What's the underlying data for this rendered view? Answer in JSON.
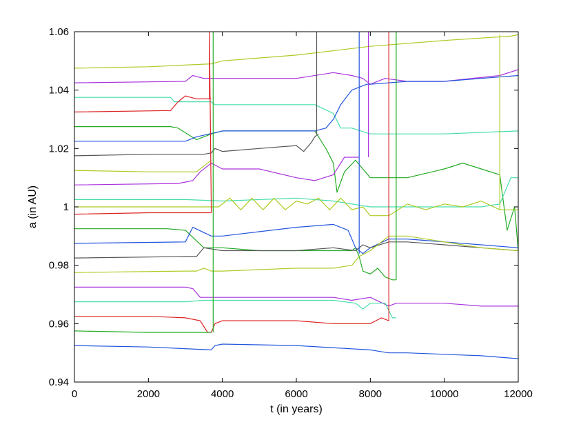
{
  "chart_data": {
    "type": "line",
    "title": "",
    "xlabel": "t (in years)",
    "ylabel": "a (in AU)",
    "xlim": [
      0,
      12000
    ],
    "ylim": [
      0.94,
      1.06
    ],
    "xticks": [
      0,
      2000,
      4000,
      6000,
      8000,
      10000,
      12000
    ],
    "xtick_labels": [
      "0",
      "2000",
      "4000",
      "6000",
      "8000",
      "10000",
      "12000"
    ],
    "yticks": [
      0.94,
      0.96,
      0.98,
      1.0,
      1.02,
      1.04,
      1.06
    ],
    "ytick_labels": [
      "0.94",
      "0.96",
      "0.98",
      "1",
      "1.02",
      "1.04",
      "1.06"
    ],
    "grid": false,
    "legend": "none",
    "series": [
      {
        "color": "#aacc22",
        "x": [
          0,
          2000,
          3700,
          4000,
          6000,
          8000,
          10000,
          11800,
          12000
        ],
        "y": [
          1.0475,
          1.048,
          1.049,
          1.05,
          1.052,
          1.055,
          1.057,
          1.0585,
          1.059
        ]
      },
      {
        "color": "#aa33dd",
        "x": [
          0,
          3000,
          3200,
          3500,
          6000,
          7000,
          7500,
          7800,
          8000,
          8400,
          9000,
          10000,
          11500,
          12000
        ],
        "y": [
          1.0425,
          1.043,
          1.045,
          1.044,
          1.044,
          1.046,
          1.045,
          1.044,
          1.042,
          1.044,
          1.043,
          1.043,
          1.045,
          1.047
        ]
      },
      {
        "color": "#44ddaa",
        "x": [
          0,
          2600,
          2700,
          3700,
          3800,
          6500,
          7000,
          7200,
          7500,
          8000,
          10000,
          12000
        ],
        "y": [
          1.0375,
          1.0375,
          1.036,
          1.036,
          1.035,
          1.035,
          1.032,
          1.027,
          1.027,
          1.025,
          1.025,
          1.026
        ]
      },
      {
        "color": "#dd2222",
        "x": [
          0,
          2600,
          2800,
          3000,
          3300,
          3700
        ],
        "y": [
          1.0325,
          1.033,
          1.036,
          1.038,
          1.037,
          1.037
        ]
      },
      {
        "color": "#22aa22",
        "x": [
          0,
          2600,
          2800,
          3300,
          3700,
          4000,
          6500,
          6800,
          7000,
          7100,
          7300,
          7600,
          8000,
          9000,
          10000,
          10500,
          11000,
          11500,
          11700,
          11900,
          12000
        ],
        "y": [
          1.0275,
          1.0275,
          1.027,
          1.023,
          1.025,
          1.026,
          1.026,
          1.02,
          1.015,
          1.005,
          1.012,
          1.016,
          1.01,
          1.01,
          1.013,
          1.015,
          1.013,
          1.011,
          0.992,
          1.0,
          0.985
        ]
      },
      {
        "color": "#2255dd",
        "x": [
          0,
          3000,
          3300,
          4000,
          6000,
          6500,
          6800,
          7000,
          7200,
          7500,
          7900,
          8000,
          9000,
          10000,
          11000,
          12000
        ],
        "y": [
          1.0225,
          1.0225,
          1.024,
          1.026,
          1.026,
          1.026,
          1.027,
          1.03,
          1.035,
          1.04,
          1.042,
          1.042,
          1.043,
          1.043,
          1.044,
          1.045
        ]
      },
      {
        "color": "#555555",
        "x": [
          0,
          2000,
          3500,
          3700,
          3800,
          4000,
          5000,
          6000,
          6200,
          6400,
          6500,
          6600
        ],
        "y": [
          1.0175,
          1.018,
          1.018,
          1.0185,
          1.02,
          1.019,
          1.02,
          1.021,
          1.019,
          1.022,
          1.024,
          1.025
        ]
      },
      {
        "color": "#aacc22",
        "x": [
          0,
          2000,
          3300,
          3500,
          3700
        ],
        "y": [
          1.0125,
          1.012,
          1.012,
          1.014,
          1.016
        ]
      },
      {
        "color": "#aa33dd",
        "x": [
          0,
          2800,
          3200,
          3400,
          3700,
          4000,
          5000,
          6000,
          6500,
          7000,
          7300,
          7700
        ],
        "y": [
          1.0075,
          1.008,
          1.009,
          1.012,
          1.015,
          1.013,
          1.013,
          1.01,
          1.009,
          1.011,
          1.017,
          1.017
        ]
      },
      {
        "color": "#44ddaa",
        "x": [
          0,
          2000,
          3000,
          4000,
          6000,
          7000,
          7500,
          8000,
          9000,
          10000,
          11000,
          11500,
          11800,
          12000
        ],
        "y": [
          1.0025,
          1.0025,
          1.0025,
          1.002,
          1.003,
          1.002,
          1.001,
          1.0,
          1.0,
          1.0,
          1.0,
          1.001,
          1.01,
          1.01
        ]
      },
      {
        "color": "#aacc22",
        "x": [
          0,
          3700,
          3900,
          4200,
          4500,
          4800,
          5100,
          5400,
          5700,
          6000,
          6300,
          6600,
          6900,
          7200,
          7500,
          7800,
          8000,
          8500,
          9000,
          9500,
          10000,
          10500,
          11000,
          11500,
          12000
        ],
        "y": [
          1.0,
          1.0,
          1.0,
          1.003,
          0.999,
          1.003,
          0.999,
          1.003,
          0.999,
          1.002,
          1.001,
          1.003,
          0.999,
          1.003,
          0.999,
          1.0,
          0.997,
          0.997,
          1.001,
          0.999,
          1.001,
          1.0,
          1.002,
          0.999,
          0.999
        ]
      },
      {
        "color": "#dd2222",
        "x": [
          0,
          2000,
          3300,
          3600,
          3700
        ],
        "y": [
          0.9975,
          0.998,
          0.998,
          0.998,
          0.998
        ]
      },
      {
        "color": "#22aa22",
        "x": [
          0,
          2500,
          3000,
          3500,
          3700,
          4000,
          5000,
          6000,
          7000,
          7500,
          7600,
          7700,
          7800,
          8000,
          8200,
          8400,
          8600,
          8700
        ],
        "y": [
          0.9925,
          0.9925,
          0.992,
          0.986,
          0.986,
          0.986,
          0.985,
          0.985,
          0.985,
          0.985,
          0.986,
          0.983,
          0.978,
          0.977,
          0.979,
          0.976,
          0.975,
          0.975
        ]
      },
      {
        "color": "#2255dd",
        "x": [
          0,
          3000,
          3200,
          3700,
          4000,
          6000,
          7000,
          7400,
          7600,
          7800,
          8000,
          8500,
          9000,
          10000,
          11000,
          12000
        ],
        "y": [
          0.9875,
          0.988,
          0.993,
          0.99,
          0.99,
          0.993,
          0.994,
          0.992,
          0.986,
          0.984,
          0.986,
          0.989,
          0.989,
          0.988,
          0.987,
          0.986
        ]
      },
      {
        "color": "#555555",
        "x": [
          0,
          3000,
          3300,
          3500,
          4000,
          6000,
          7000,
          7600,
          7800,
          8000,
          8500,
          9000,
          10000,
          11000,
          12000
        ],
        "y": [
          0.9825,
          0.983,
          0.983,
          0.986,
          0.985,
          0.985,
          0.986,
          0.985,
          0.987,
          0.986,
          0.988,
          0.988,
          0.987,
          0.986,
          0.985
        ]
      },
      {
        "color": "#aacc22",
        "x": [
          0,
          3000,
          3300,
          3500,
          3700,
          4000,
          6000,
          7000,
          7500,
          7700,
          8000,
          8500,
          9000,
          10000,
          11000,
          12000
        ],
        "y": [
          0.9775,
          0.978,
          0.978,
          0.979,
          0.978,
          0.978,
          0.979,
          0.979,
          0.98,
          0.983,
          0.985,
          0.99,
          0.99,
          0.988,
          0.986,
          0.985
        ]
      },
      {
        "color": "#aa33dd",
        "x": [
          0,
          3000,
          3200,
          3400,
          3600,
          3700,
          4000,
          5000,
          6000,
          7000,
          7500,
          8000,
          8500,
          8700,
          9000,
          10000,
          11000,
          12000
        ],
        "y": [
          0.9725,
          0.9725,
          0.972,
          0.969,
          0.969,
          0.969,
          0.969,
          0.969,
          0.969,
          0.969,
          0.968,
          0.969,
          0.966,
          0.967,
          0.967,
          0.967,
          0.966,
          0.966
        ]
      },
      {
        "color": "#44ddaa",
        "x": [
          0,
          3000,
          3500,
          4000,
          5000,
          6000,
          7000,
          7600,
          7800,
          8000,
          8400,
          8600,
          8700
        ],
        "y": [
          0.9675,
          0.9675,
          0.968,
          0.968,
          0.968,
          0.968,
          0.968,
          0.967,
          0.965,
          0.967,
          0.967,
          0.962,
          0.962
        ]
      },
      {
        "color": "#dd2222",
        "x": [
          0,
          2000,
          3000,
          3400,
          3600,
          3700,
          3800,
          4000,
          5000,
          6000,
          7000,
          8000,
          8300,
          8500
        ],
        "y": [
          0.9625,
          0.9625,
          0.962,
          0.961,
          0.957,
          0.957,
          0.96,
          0.961,
          0.961,
          0.961,
          0.96,
          0.96,
          0.962,
          0.961
        ]
      },
      {
        "color": "#22aa22",
        "x": [
          0,
          2000,
          3500,
          3700
        ],
        "y": [
          0.9575,
          0.957,
          0.957,
          0.957
        ]
      },
      {
        "color": "#2255dd",
        "x": [
          0,
          2000,
          3700,
          3800,
          4000,
          6000,
          8000,
          8500,
          9000,
          10000,
          11000,
          12000
        ],
        "y": [
          0.9525,
          0.952,
          0.951,
          0.9525,
          0.953,
          0.9525,
          0.951,
          0.95,
          0.95,
          0.9495,
          0.949,
          0.948
        ]
      },
      {
        "color": "#dd2222",
        "x": [
          3650,
          3650,
          3700
        ],
        "y": [
          1.037,
          1.06,
          0.998
        ]
      },
      {
        "color": "#22aa22",
        "x": [
          3750,
          3750
        ],
        "y": [
          0.957,
          1.06
        ]
      },
      {
        "color": "#555555",
        "x": [
          6550,
          6550
        ],
        "y": [
          1.025,
          1.06
        ]
      },
      {
        "color": "#2255dd",
        "x": [
          7700,
          7700
        ],
        "y": [
          0.984,
          1.06
        ]
      },
      {
        "color": "#aa33dd",
        "x": [
          7950,
          7950
        ],
        "y": [
          1.017,
          1.06
        ]
      },
      {
        "color": "#dd2222",
        "x": [
          8500,
          8500
        ],
        "y": [
          0.961,
          1.06
        ]
      },
      {
        "color": "#22aa22",
        "x": [
          8700,
          8700
        ],
        "y": [
          0.975,
          1.06
        ]
      },
      {
        "color": "#aacc22",
        "x": [
          11500,
          11500
        ],
        "y": [
          0.999,
          1.059
        ]
      }
    ]
  }
}
